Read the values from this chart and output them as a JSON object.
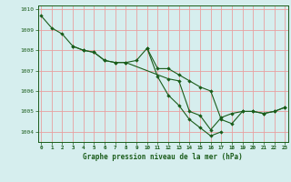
{
  "title": "Graphe pression niveau de la mer (hPa)",
  "background_color": "#d6eeee",
  "plot_bg_color": "#d6eeee",
  "grid_color": "#e8a0a0",
  "line_color": "#1a5c1a",
  "series": [
    {
      "x": [
        0,
        1,
        2,
        3,
        4,
        5,
        6,
        7,
        8,
        9,
        10,
        11,
        12,
        13,
        14,
        15,
        16,
        17
      ],
      "y": [
        1009.7,
        1009.1,
        1008.8,
        1008.2,
        1008.0,
        1007.9,
        1007.5,
        1007.4,
        1007.4,
        1007.5,
        1008.1,
        1006.7,
        1005.8,
        1005.3,
        1004.6,
        1004.2,
        1003.8,
        1004.0
      ]
    },
    {
      "x": [
        3,
        4,
        5,
        6,
        7,
        8,
        12,
        13,
        14,
        15,
        16,
        17,
        18,
        19,
        20,
        21,
        22,
        23
      ],
      "y": [
        1008.2,
        1008.0,
        1007.9,
        1007.5,
        1007.4,
        1007.4,
        1006.6,
        1006.5,
        1005.0,
        1004.8,
        1004.1,
        1004.7,
        1004.9,
        1005.0,
        1005.0,
        1004.9,
        1005.0,
        1005.2
      ]
    },
    {
      "x": [
        10,
        11,
        12,
        13,
        14,
        15,
        16,
        17,
        18,
        19,
        20,
        21,
        22,
        23
      ],
      "y": [
        1008.1,
        1007.1,
        1007.1,
        1006.8,
        1006.5,
        1006.2,
        1006.0,
        1004.6,
        1004.4,
        1005.0,
        1005.0,
        1004.9,
        1005.0,
        1005.2
      ]
    }
  ],
  "ylim": [
    1003.5,
    1010.2
  ],
  "xlim": [
    -0.3,
    23.3
  ],
  "yticks": [
    1004,
    1005,
    1006,
    1007,
    1008,
    1009,
    1010
  ],
  "xticks": [
    0,
    1,
    2,
    3,
    4,
    5,
    6,
    7,
    8,
    9,
    10,
    11,
    12,
    13,
    14,
    15,
    16,
    17,
    18,
    19,
    20,
    21,
    22,
    23
  ]
}
